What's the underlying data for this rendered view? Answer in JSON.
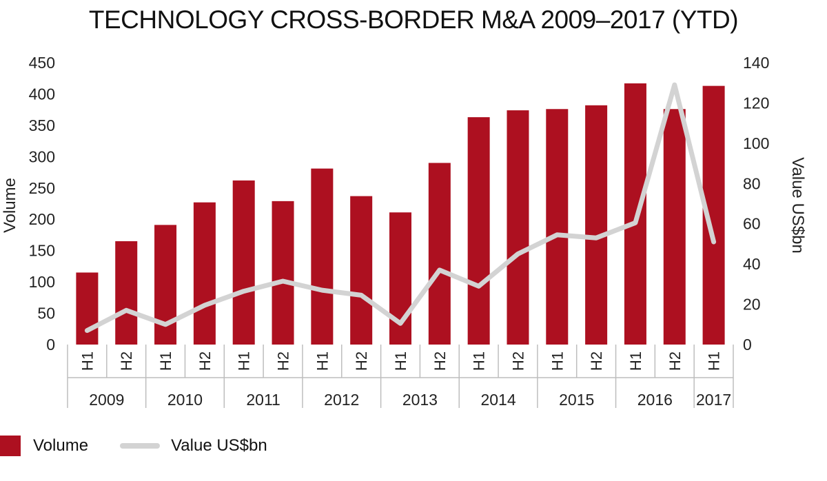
{
  "chart_data": {
    "type": "bar",
    "title": "TECHNOLOGY CROSS-BORDER M&A 2009–2017 (YTD)",
    "categories": [
      "H1",
      "H2",
      "H1",
      "H2",
      "H1",
      "H2",
      "H1",
      "H2",
      "H1",
      "H2",
      "H1",
      "H2",
      "H1",
      "H2",
      "H1",
      "H2",
      "H1"
    ],
    "years": [
      "2009",
      "2010",
      "2011",
      "2012",
      "2013",
      "2014",
      "2015",
      "2016",
      "2017"
    ],
    "series": [
      {
        "name": "Volume",
        "type": "bar",
        "axis": "left",
        "values": [
          115,
          165,
          191,
          227,
          262,
          229,
          281,
          237,
          211,
          290,
          363,
          374,
          376,
          382,
          417,
          376,
          413
        ]
      },
      {
        "name": "Value US$bn",
        "type": "line",
        "axis": "right",
        "values": [
          7,
          17,
          10,
          19.5,
          26.5,
          31.5,
          27,
          24.5,
          10.5,
          37,
          29,
          45,
          54.5,
          53,
          60.5,
          129,
          51
        ]
      }
    ],
    "ylabel": "Volume",
    "y2label": "Value US$bn",
    "ylim": [
      0,
      450
    ],
    "y2lim": [
      0,
      140
    ],
    "yticks": [
      "0",
      "50",
      "100",
      "150",
      "200",
      "250",
      "300",
      "350",
      "400",
      "450"
    ],
    "y2ticks": [
      "0",
      "20",
      "40",
      "60",
      "80",
      "100",
      "120",
      "140"
    ],
    "colors": {
      "bar": "#ad1020",
      "line": "#d3d3d3"
    },
    "legend_position": "bottom-left",
    "grid": false
  }
}
